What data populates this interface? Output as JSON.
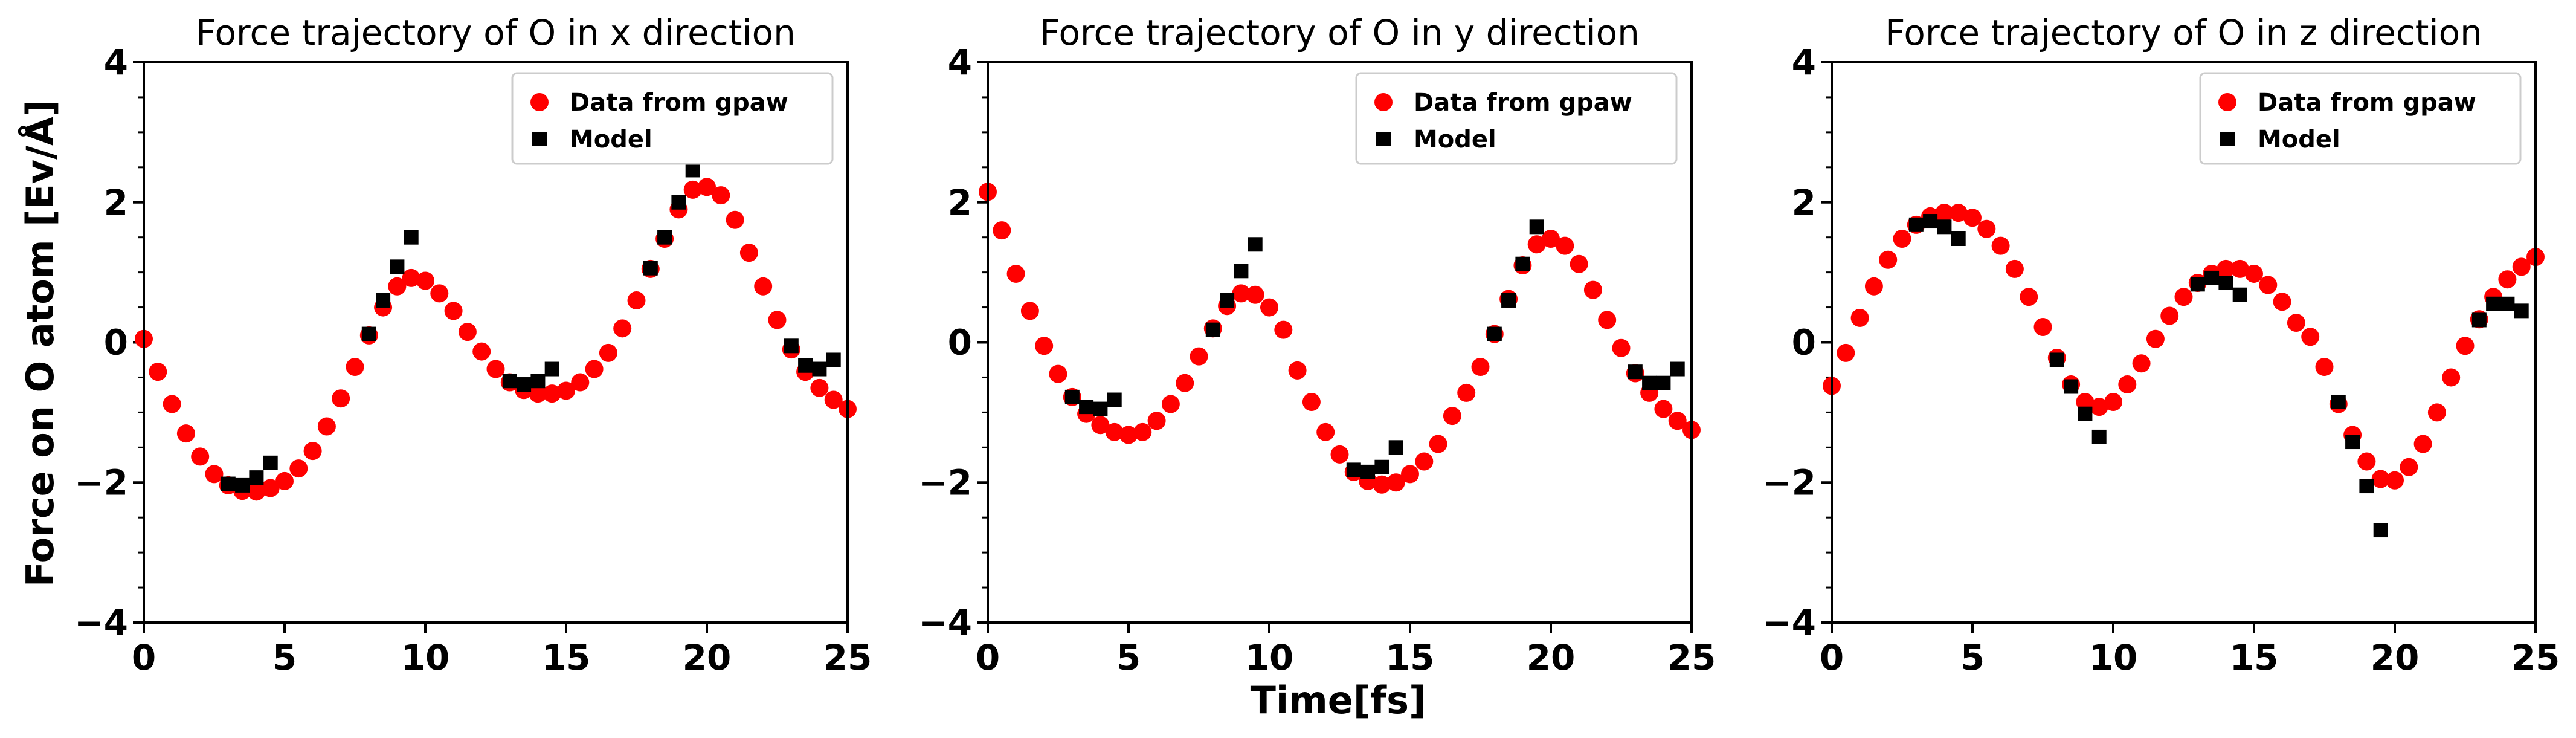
{
  "figure": {
    "ylabel": "Force on O atom [Ev/Å]",
    "xlabel": "Time[fs]"
  },
  "legend": {
    "entries": [
      "Data from gpaw",
      "Model"
    ],
    "placement": "top-right"
  },
  "colors": {
    "gpaw": "#ff0000",
    "model": "#000000"
  },
  "chart_data": [
    {
      "type": "scatter",
      "title": "Force trajectory of O in x direction",
      "xlim": [
        0,
        25
      ],
      "ylim": [
        -4,
        4
      ],
      "xticks": [
        "0",
        "5",
        "10",
        "15",
        "20",
        "25"
      ],
      "yticks": [
        "−4",
        "−2",
        "0",
        "2",
        "4"
      ],
      "series": [
        {
          "name": "Data from gpaw",
          "marker": "circle",
          "x": [
            0,
            0.5,
            1,
            1.5,
            2,
            2.5,
            3,
            3.5,
            4,
            4.5,
            5,
            5.5,
            6,
            6.5,
            7,
            7.5,
            8,
            8.5,
            9,
            9.5,
            10,
            10.5,
            11,
            11.5,
            12,
            12.5,
            13,
            13.5,
            14,
            14.5,
            15,
            15.5,
            16,
            16.5,
            17,
            17.5,
            18,
            18.5,
            19,
            19.5,
            20,
            20.5,
            21,
            21.5,
            22,
            22.5,
            23,
            23.5,
            24,
            24.5,
            25
          ],
          "y": [
            0.05,
            -0.42,
            -0.88,
            -1.3,
            -1.63,
            -1.88,
            -2.04,
            -2.12,
            -2.13,
            -2.08,
            -1.98,
            -1.8,
            -1.55,
            -1.2,
            -0.8,
            -0.35,
            0.1,
            0.5,
            0.8,
            0.92,
            0.88,
            0.7,
            0.45,
            0.15,
            -0.13,
            -0.38,
            -0.57,
            -0.68,
            -0.73,
            -0.73,
            -0.69,
            -0.57,
            -0.38,
            -0.15,
            0.2,
            0.6,
            1.05,
            1.48,
            1.9,
            2.18,
            2.22,
            2.1,
            1.75,
            1.28,
            0.8,
            0.32,
            -0.1,
            -0.42,
            -0.65,
            -0.82,
            -0.95
          ]
        },
        {
          "name": "Model",
          "marker": "square",
          "x": [
            3,
            3.5,
            4,
            4.5,
            8,
            8.5,
            9,
            9.5,
            13,
            13.5,
            14,
            14.5,
            18,
            18.5,
            19,
            19.5,
            23,
            23.5,
            24,
            24.5
          ],
          "y": [
            -2.02,
            -2.04,
            -1.93,
            -1.72,
            0.12,
            0.6,
            1.08,
            1.5,
            -0.55,
            -0.6,
            -0.55,
            -0.38,
            1.06,
            1.5,
            2.0,
            2.46,
            -0.05,
            -0.33,
            -0.38,
            -0.25
          ]
        }
      ]
    },
    {
      "type": "scatter",
      "title": "Force trajectory of O in y direction",
      "xlim": [
        0,
        25
      ],
      "ylim": [
        -4,
        4
      ],
      "xticks": [
        "0",
        "5",
        "10",
        "15",
        "20",
        "25"
      ],
      "yticks": [
        "−4",
        "−2",
        "0",
        "2",
        "4"
      ],
      "series": [
        {
          "name": "Data from gpaw",
          "marker": "circle",
          "x": [
            0,
            0.5,
            1,
            1.5,
            2,
            2.5,
            3,
            3.5,
            4,
            4.5,
            5,
            5.5,
            6,
            6.5,
            7,
            7.5,
            8,
            8.5,
            9,
            9.5,
            10,
            10.5,
            11,
            11.5,
            12,
            12.5,
            13,
            13.5,
            14,
            14.5,
            15,
            15.5,
            16,
            16.5,
            17,
            17.5,
            18,
            18.5,
            19,
            19.5,
            20,
            20.5,
            21,
            21.5,
            22,
            22.5,
            23,
            23.5,
            24,
            24.5,
            25
          ],
          "y": [
            2.15,
            1.6,
            0.98,
            0.45,
            -0.05,
            -0.45,
            -0.78,
            -1.02,
            -1.18,
            -1.28,
            -1.32,
            -1.28,
            -1.12,
            -0.88,
            -0.58,
            -0.2,
            0.2,
            0.52,
            0.7,
            0.68,
            0.5,
            0.18,
            -0.4,
            -0.85,
            -1.28,
            -1.6,
            -1.85,
            -1.98,
            -2.03,
            -2.0,
            -1.88,
            -1.7,
            -1.45,
            -1.05,
            -0.72,
            -0.35,
            0.12,
            0.62,
            1.1,
            1.4,
            1.48,
            1.38,
            1.12,
            0.75,
            0.32,
            -0.08,
            -0.44,
            -0.72,
            -0.95,
            -1.12,
            -1.25
          ]
        },
        {
          "name": "Model",
          "marker": "square",
          "x": [
            3,
            3.5,
            4,
            4.5,
            8,
            8.5,
            9,
            9.5,
            13,
            13.5,
            14,
            14.5,
            18,
            18.5,
            19,
            19.5,
            23,
            23.5,
            24,
            24.5
          ],
          "y": [
            -0.78,
            -0.92,
            -0.95,
            -0.82,
            0.18,
            0.6,
            1.02,
            1.4,
            -1.82,
            -1.85,
            -1.78,
            -1.5,
            0.12,
            0.6,
            1.12,
            1.65,
            -0.42,
            -0.58,
            -0.58,
            -0.38
          ]
        }
      ]
    },
    {
      "type": "scatter",
      "title": "Force trajectory of O in z direction",
      "xlim": [
        0,
        25
      ],
      "ylim": [
        -4,
        4
      ],
      "xticks": [
        "0",
        "5",
        "10",
        "15",
        "20",
        "25"
      ],
      "yticks": [
        "−4",
        "−2",
        "0",
        "2",
        "4"
      ],
      "series": [
        {
          "name": "Data from gpaw",
          "marker": "circle",
          "x": [
            0,
            0.5,
            1,
            1.5,
            2,
            2.5,
            3,
            3.5,
            4,
            4.5,
            5,
            5.5,
            6,
            6.5,
            7,
            7.5,
            8,
            8.5,
            9,
            9.5,
            10,
            10.5,
            11,
            11.5,
            12,
            12.5,
            13,
            13.5,
            14,
            14.5,
            15,
            15.5,
            16,
            16.5,
            17,
            17.5,
            18,
            18.5,
            19,
            19.5,
            20,
            20.5,
            21,
            21.5,
            22,
            22.5,
            23,
            23.5,
            24,
            24.5,
            25
          ],
          "y": [
            -0.62,
            -0.15,
            0.35,
            0.8,
            1.18,
            1.48,
            1.68,
            1.8,
            1.85,
            1.85,
            1.78,
            1.62,
            1.38,
            1.05,
            0.65,
            0.22,
            -0.22,
            -0.6,
            -0.85,
            -0.92,
            -0.85,
            -0.6,
            -0.3,
            0.05,
            0.38,
            0.65,
            0.85,
            0.98,
            1.05,
            1.05,
            0.98,
            0.82,
            0.58,
            0.28,
            0.08,
            -0.35,
            -0.88,
            -1.32,
            -1.7,
            -1.95,
            -1.97,
            -1.78,
            -1.45,
            -1.0,
            -0.5,
            -0.05,
            0.33,
            0.65,
            0.9,
            1.08,
            1.22
          ]
        },
        {
          "name": "Model",
          "marker": "square",
          "x": [
            3,
            3.5,
            4,
            4.5,
            8,
            8.5,
            9,
            9.5,
            13,
            13.5,
            14,
            14.5,
            18,
            18.5,
            19,
            19.5,
            23,
            23.5,
            24,
            24.5
          ],
          "y": [
            1.68,
            1.73,
            1.65,
            1.48,
            -0.25,
            -0.63,
            -1.02,
            -1.35,
            0.83,
            0.92,
            0.85,
            0.68,
            -0.85,
            -1.42,
            -2.05,
            -2.68,
            0.32,
            0.55,
            0.55,
            0.45
          ]
        }
      ]
    }
  ]
}
